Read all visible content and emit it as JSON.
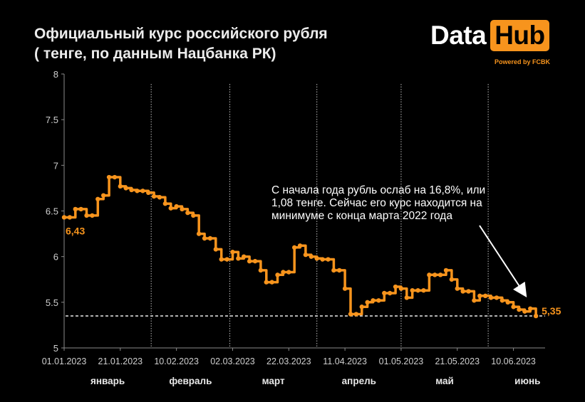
{
  "title_line1": "Официальный курс российского рубля",
  "title_line2": "( тенге, по данным Нацбанка РК)",
  "logo": {
    "data": "Data",
    "hub": "Hub",
    "powered": "Powered by FCBK"
  },
  "colors": {
    "background": "#000000",
    "line": "#f7941d",
    "text": "#ffffff",
    "axis_text": "#cfcfcf"
  },
  "chart_data": {
    "type": "line",
    "y_ticks": [
      "5",
      "5.5",
      "6",
      "6.5",
      "7",
      "7.5",
      "8"
    ],
    "ylim": [
      5,
      8
    ],
    "x_tick_labels": [
      "01.01.2023",
      "21.01.2023",
      "10.02.2023",
      "02.03.2023",
      "22.03.2023",
      "11.04.2023",
      "01.05.2023",
      "21.05.2023",
      "10.06.2023"
    ],
    "month_labels": [
      "январь",
      "февраль",
      "март",
      "апрель",
      "май",
      "июнь"
    ],
    "start_label": "6,43",
    "end_label": "5,35",
    "reference_line": 5.35,
    "annotation": [
      "С начала года рубль ослаб на 16,8%, или",
      "1,08 тенге. Сейчас его курс находится на",
      "минимуме с конца марта 2022 года"
    ],
    "grid": false,
    "x": [
      "2023-01-01",
      "2023-01-03",
      "2023-01-05",
      "2023-01-07",
      "2023-01-09",
      "2023-01-11",
      "2023-01-13",
      "2023-01-15",
      "2023-01-17",
      "2023-01-19",
      "2023-01-21",
      "2023-01-23",
      "2023-01-25",
      "2023-01-27",
      "2023-01-29",
      "2023-01-31",
      "2023-02-02",
      "2023-02-04",
      "2023-02-06",
      "2023-02-08",
      "2023-02-10",
      "2023-02-12",
      "2023-02-14",
      "2023-02-16",
      "2023-02-18",
      "2023-02-20",
      "2023-02-22",
      "2023-02-24",
      "2023-02-26",
      "2023-02-28",
      "2023-03-02",
      "2023-03-04",
      "2023-03-06",
      "2023-03-08",
      "2023-03-10",
      "2023-03-12",
      "2023-03-14",
      "2023-03-16",
      "2023-03-18",
      "2023-03-20",
      "2023-03-22",
      "2023-03-24",
      "2023-03-26",
      "2023-03-28",
      "2023-03-30",
      "2023-04-01",
      "2023-04-03",
      "2023-04-05",
      "2023-04-07",
      "2023-04-09",
      "2023-04-11",
      "2023-04-13",
      "2023-04-15",
      "2023-04-17",
      "2023-04-19",
      "2023-04-21",
      "2023-04-23",
      "2023-04-25",
      "2023-04-27",
      "2023-04-29",
      "2023-05-01",
      "2023-05-03",
      "2023-05-05",
      "2023-05-07",
      "2023-05-09",
      "2023-05-11",
      "2023-05-13",
      "2023-05-15",
      "2023-05-17",
      "2023-05-19",
      "2023-05-21",
      "2023-05-23",
      "2023-05-25",
      "2023-05-27",
      "2023-05-29",
      "2023-05-31",
      "2023-06-02",
      "2023-06-04",
      "2023-06-06",
      "2023-06-08",
      "2023-06-10",
      "2023-06-12",
      "2023-06-14",
      "2023-06-16",
      "2023-06-18"
    ],
    "values": [
      6.43,
      6.43,
      6.52,
      6.52,
      6.45,
      6.45,
      6.63,
      6.67,
      6.87,
      6.87,
      6.77,
      6.75,
      6.73,
      6.72,
      6.72,
      6.7,
      6.66,
      6.65,
      6.58,
      6.53,
      6.55,
      6.52,
      6.48,
      6.45,
      6.25,
      6.2,
      6.2,
      6.08,
      5.97,
      5.97,
      6.05,
      5.98,
      6.0,
      5.95,
      5.95,
      5.85,
      5.72,
      5.72,
      5.8,
      5.83,
      5.83,
      6.1,
      6.12,
      6.02,
      6.0,
      5.98,
      5.97,
      5.97,
      5.85,
      5.85,
      5.65,
      5.37,
      5.37,
      5.45,
      5.5,
      5.52,
      5.52,
      5.6,
      5.6,
      5.67,
      5.65,
      5.55,
      5.63,
      5.63,
      5.63,
      5.8,
      5.8,
      5.8,
      5.85,
      5.75,
      5.65,
      5.62,
      5.62,
      5.52,
      5.57,
      5.57,
      5.55,
      5.55,
      5.52,
      5.5,
      5.45,
      5.42,
      5.4,
      5.43,
      5.35
    ]
  }
}
